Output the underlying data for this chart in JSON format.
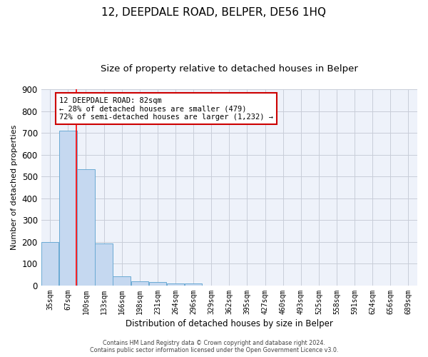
{
  "title": "12, DEEPDALE ROAD, BELPER, DE56 1HQ",
  "subtitle": "Size of property relative to detached houses in Belper",
  "xlabel": "Distribution of detached houses by size in Belper",
  "ylabel": "Number of detached properties",
  "categories": [
    "35sqm",
    "67sqm",
    "100sqm",
    "133sqm",
    "166sqm",
    "198sqm",
    "231sqm",
    "264sqm",
    "296sqm",
    "329sqm",
    "362sqm",
    "395sqm",
    "427sqm",
    "460sqm",
    "493sqm",
    "525sqm",
    "558sqm",
    "591sqm",
    "624sqm",
    "656sqm",
    "689sqm"
  ],
  "values": [
    200,
    711,
    535,
    193,
    42,
    18,
    15,
    11,
    9,
    0,
    0,
    0,
    0,
    0,
    0,
    0,
    0,
    0,
    0,
    0,
    0
  ],
  "bar_color": "#c5d8f0",
  "bar_edge_color": "#6aaad4",
  "ylim": [
    0,
    900
  ],
  "yticks": [
    0,
    100,
    200,
    300,
    400,
    500,
    600,
    700,
    800,
    900
  ],
  "red_line_x": 1.47,
  "annotation_line1": "12 DEEPDALE ROAD: 82sqm",
  "annotation_line2": "← 28% of detached houses are smaller (479)",
  "annotation_line3": "72% of semi-detached houses are larger (1,232) →",
  "annotation_border_color": "#cc0000",
  "footer1": "Contains HM Land Registry data © Crown copyright and database right 2024.",
  "footer2": "Contains public sector information licensed under the Open Government Licence v3.0.",
  "bg_color": "#eef2fa",
  "grid_color": "#c8cdd8",
  "title_fontsize": 11,
  "subtitle_fontsize": 9.5,
  "ylabel_fontsize": 8,
  "xlabel_fontsize": 8.5,
  "tick_fontsize": 7,
  "annotation_fontsize": 7.5,
  "footer_fontsize": 5.8
}
